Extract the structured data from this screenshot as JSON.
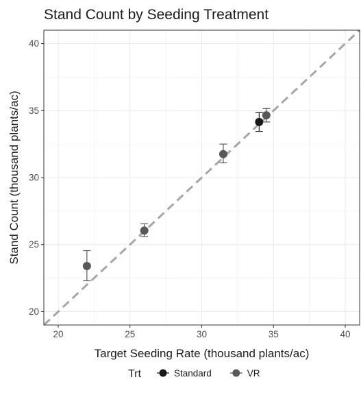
{
  "chart_data": {
    "type": "scatter",
    "title": "Stand Count by Seeding Treatment",
    "xlabel": "Target Seeding Rate (thousand plants/ac)",
    "ylabel": "Stand Count (thousand plants/ac)",
    "xlim": [
      19,
      41
    ],
    "ylim": [
      19,
      41
    ],
    "x_ticks": [
      20,
      25,
      30,
      35,
      40
    ],
    "y_ticks": [
      20,
      25,
      30,
      35,
      40
    ],
    "grid": true,
    "reference_line": {
      "type": "identity",
      "slope": 1,
      "intercept": 0,
      "style": "dashed",
      "color": "#a6a6a6"
    },
    "legend": {
      "title": "Trt",
      "position": "bottom"
    },
    "series": [
      {
        "name": "Standard",
        "color": "#1a1a1a",
        "points": [
          {
            "x": 34.0,
            "y": 34.15,
            "ymin": 33.45,
            "ymax": 34.85
          }
        ]
      },
      {
        "name": "VR",
        "color": "#595959",
        "points": [
          {
            "x": 22.0,
            "y": 23.4,
            "ymin": 22.3,
            "ymax": 24.55
          },
          {
            "x": 26.0,
            "y": 26.05,
            "ymin": 25.6,
            "ymax": 26.55
          },
          {
            "x": 31.5,
            "y": 31.75,
            "ymin": 31.1,
            "ymax": 32.5
          },
          {
            "x": 34.5,
            "y": 34.65,
            "ymin": 34.15,
            "ymax": 35.15
          }
        ]
      }
    ]
  }
}
